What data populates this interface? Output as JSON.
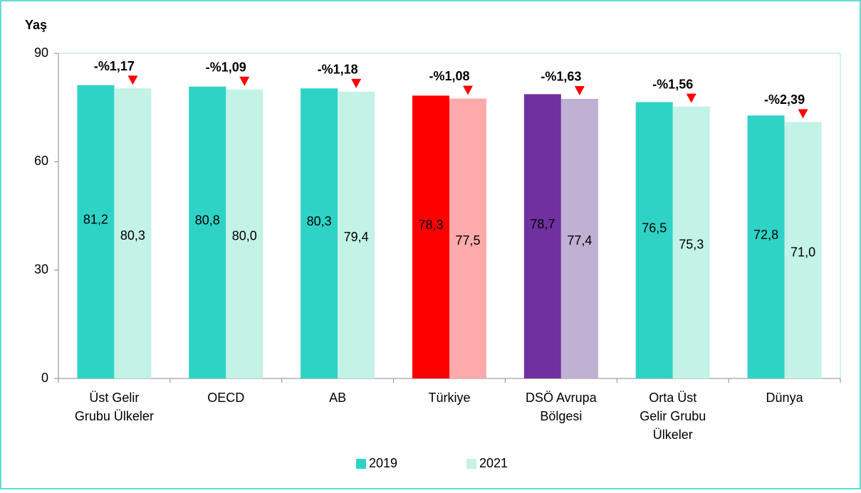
{
  "chart_data": {
    "type": "bar",
    "y_label": "Yaş",
    "categories": [
      [
        "Üst Gelir",
        "Grubu Ülkeler"
      ],
      [
        "OECD"
      ],
      [
        "AB"
      ],
      [
        "Türkiye"
      ],
      [
        "DSÖ Avrupa",
        "Bölgesi"
      ],
      [
        "Orta Üst",
        "Gelir Grubu",
        "Ülkeler"
      ],
      [
        "Dünya"
      ]
    ],
    "series": [
      {
        "name": "2019",
        "color": "#2ed3c6",
        "colors": [
          "#2ed3c6",
          "#2ed3c6",
          "#2ed3c6",
          "#ff0000",
          "#7030a0",
          "#2ed3c6",
          "#2ed3c6"
        ],
        "label_colors": [
          "#000000",
          "#000000",
          "#000000",
          "#ffffff",
          "#ffffff",
          "#000000",
          "#000000"
        ],
        "values": [
          81.2,
          80.8,
          80.3,
          78.3,
          78.7,
          76.5,
          72.8
        ],
        "value_labels": [
          "81,2",
          "80,8",
          "80,3",
          "78,3",
          "78,7",
          "76,5",
          "72,8"
        ]
      },
      {
        "name": "2021",
        "color": "#c3f2e6",
        "colors": [
          "#c3f2e6",
          "#c3f2e6",
          "#c3f2e6",
          "#ffabab",
          "#c0b0d4",
          "#c3f2e6",
          "#c3f2e6"
        ],
        "label_colors": [
          "#000000",
          "#000000",
          "#000000",
          "#000000",
          "#000000",
          "#000000",
          "#000000"
        ],
        "values": [
          80.3,
          80.0,
          79.4,
          77.5,
          77.4,
          75.3,
          71.0
        ],
        "value_labels": [
          "80,3",
          "80,0",
          "79,4",
          "77,5",
          "77,4",
          "75,3",
          "71,0"
        ]
      }
    ],
    "annotations": [
      "-%1,17",
      "-%1,09",
      "-%1,18",
      "-%1,08",
      "-%1,63",
      "-%1,56",
      "-%2,39"
    ],
    "annotation_color": "#ff0000",
    "ylim": [
      0,
      90
    ],
    "yticks": [
      0,
      30,
      60,
      90
    ],
    "grid": false,
    "legend": "bottom"
  }
}
